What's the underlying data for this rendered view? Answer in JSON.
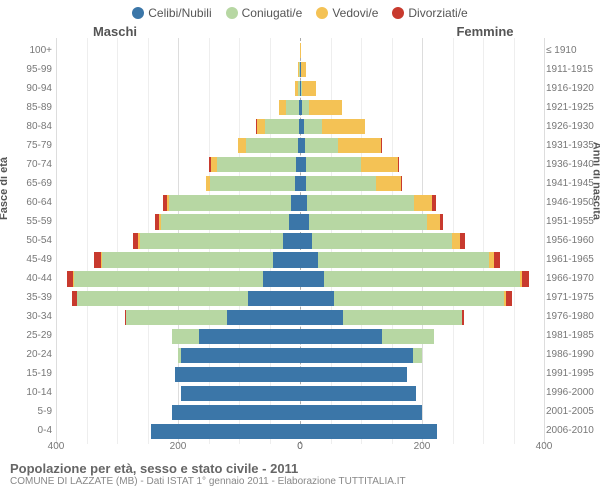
{
  "legend": [
    {
      "label": "Celibi/Nubili",
      "color": "#3b76a8"
    },
    {
      "label": "Coniugati/e",
      "color": "#b7d7a3"
    },
    {
      "label": "Vedovi/e",
      "color": "#f4c255"
    },
    {
      "label": "Divorziati/e",
      "color": "#c83a2e"
    }
  ],
  "header_male": "Maschi",
  "header_female": "Femmine",
  "axis_left": "Fasce di età",
  "axis_right": "Anni di nascita",
  "max_value": 400,
  "x_ticks_left": [
    400,
    200,
    0
  ],
  "x_ticks_right": [
    0,
    200,
    400
  ],
  "grid_minor_step": 50,
  "grid_minor_color": "#eeeeee",
  "grid_major_color": "#dddddd",
  "grid_major_ticks": [
    400,
    200,
    0
  ],
  "title": "Popolazione per età, sesso e stato civile - 2011",
  "subtitle": "COMUNE DI LAZZATE (MB) - Dati ISTAT 1° gennaio 2011 - Elaborazione TUTTITALIA.IT",
  "bar_series_order": [
    "celibi",
    "coniugati",
    "vedovi",
    "divorziati"
  ],
  "rows": [
    {
      "age": "0-4",
      "birth": "2006-2010",
      "m": {
        "celibi": 245,
        "coniugati": 0,
        "vedovi": 0,
        "divorziati": 0
      },
      "f": {
        "celibi": 225,
        "coniugati": 0,
        "vedovi": 0,
        "divorziati": 0
      }
    },
    {
      "age": "5-9",
      "birth": "2001-2005",
      "m": {
        "celibi": 210,
        "coniugati": 0,
        "vedovi": 0,
        "divorziati": 0
      },
      "f": {
        "celibi": 200,
        "coniugati": 0,
        "vedovi": 0,
        "divorziati": 0
      }
    },
    {
      "age": "10-14",
      "birth": "1996-2000",
      "m": {
        "celibi": 195,
        "coniugati": 0,
        "vedovi": 0,
        "divorziati": 0
      },
      "f": {
        "celibi": 190,
        "coniugati": 0,
        "vedovi": 0,
        "divorziati": 0
      }
    },
    {
      "age": "15-19",
      "birth": "1991-1995",
      "m": {
        "celibi": 205,
        "coniugati": 0,
        "vedovi": 0,
        "divorziati": 0
      },
      "f": {
        "celibi": 175,
        "coniugati": 0,
        "vedovi": 0,
        "divorziati": 0
      }
    },
    {
      "age": "20-24",
      "birth": "1986-1990",
      "m": {
        "celibi": 195,
        "coniugati": 5,
        "vedovi": 0,
        "divorziati": 0
      },
      "f": {
        "celibi": 185,
        "coniugati": 15,
        "vedovi": 0,
        "divorziati": 0
      }
    },
    {
      "age": "25-29",
      "birth": "1981-1985",
      "m": {
        "celibi": 165,
        "coniugati": 45,
        "vedovi": 0,
        "divorziati": 0
      },
      "f": {
        "celibi": 135,
        "coniugati": 85,
        "vedovi": 0,
        "divorziati": 0
      }
    },
    {
      "age": "30-34",
      "birth": "1976-1980",
      "m": {
        "celibi": 120,
        "coniugati": 165,
        "vedovi": 0,
        "divorziati": 2
      },
      "f": {
        "celibi": 70,
        "coniugati": 195,
        "vedovi": 0,
        "divorziati": 4
      }
    },
    {
      "age": "35-39",
      "birth": "1971-1975",
      "m": {
        "celibi": 85,
        "coniugati": 280,
        "vedovi": 0,
        "divorziati": 8
      },
      "f": {
        "celibi": 55,
        "coniugati": 280,
        "vedovi": 2,
        "divorziati": 10
      }
    },
    {
      "age": "40-44",
      "birth": "1966-1970",
      "m": {
        "celibi": 60,
        "coniugati": 310,
        "vedovi": 2,
        "divorziati": 10
      },
      "f": {
        "celibi": 40,
        "coniugati": 320,
        "vedovi": 4,
        "divorziati": 12
      }
    },
    {
      "age": "45-49",
      "birth": "1961-1965",
      "m": {
        "celibi": 45,
        "coniugati": 280,
        "vedovi": 2,
        "divorziati": 10
      },
      "f": {
        "celibi": 30,
        "coniugati": 280,
        "vedovi": 8,
        "divorziati": 10
      }
    },
    {
      "age": "50-54",
      "birth": "1956-1960",
      "m": {
        "celibi": 28,
        "coniugati": 235,
        "vedovi": 2,
        "divorziati": 8
      },
      "f": {
        "celibi": 20,
        "coniugati": 230,
        "vedovi": 12,
        "divorziati": 8
      }
    },
    {
      "age": "55-59",
      "birth": "1951-1955",
      "m": {
        "celibi": 18,
        "coniugati": 210,
        "vedovi": 3,
        "divorziati": 6
      },
      "f": {
        "celibi": 14,
        "coniugati": 195,
        "vedovi": 20,
        "divorziati": 6
      }
    },
    {
      "age": "60-64",
      "birth": "1946-1950",
      "m": {
        "celibi": 14,
        "coniugati": 200,
        "vedovi": 4,
        "divorziati": 6
      },
      "f": {
        "celibi": 12,
        "coniugati": 175,
        "vedovi": 30,
        "divorziati": 6
      }
    },
    {
      "age": "65-69",
      "birth": "1941-1945",
      "m": {
        "celibi": 8,
        "coniugati": 140,
        "vedovi": 6,
        "divorziati": 0
      },
      "f": {
        "celibi": 10,
        "coniugati": 115,
        "vedovi": 40,
        "divorziati": 3
      }
    },
    {
      "age": "70-74",
      "birth": "1936-1940",
      "m": {
        "celibi": 6,
        "coniugati": 130,
        "vedovi": 10,
        "divorziati": 3
      },
      "f": {
        "celibi": 10,
        "coniugati": 90,
        "vedovi": 60,
        "divorziati": 2
      }
    },
    {
      "age": "75-79",
      "birth": "1931-1935",
      "m": {
        "celibi": 4,
        "coniugati": 85,
        "vedovi": 12,
        "divorziati": 1
      },
      "f": {
        "celibi": 8,
        "coniugati": 55,
        "vedovi": 70,
        "divorziati": 1
      }
    },
    {
      "age": "80-84",
      "birth": "1926-1930",
      "m": {
        "celibi": 2,
        "coniugati": 55,
        "vedovi": 14,
        "divorziati": 1
      },
      "f": {
        "celibi": 6,
        "coniugati": 30,
        "vedovi": 70,
        "divorziati": 0
      }
    },
    {
      "age": "85-89",
      "birth": "1921-1925",
      "m": {
        "celibi": 1,
        "coniugati": 22,
        "vedovi": 12,
        "divorziati": 0
      },
      "f": {
        "celibi": 4,
        "coniugati": 10,
        "vedovi": 55,
        "divorziati": 0
      }
    },
    {
      "age": "90-94",
      "birth": "1916-1920",
      "m": {
        "celibi": 0,
        "coniugati": 4,
        "vedovi": 5,
        "divorziati": 0
      },
      "f": {
        "celibi": 2,
        "coniugati": 2,
        "vedovi": 22,
        "divorziati": 0
      }
    },
    {
      "age": "95-99",
      "birth": "1911-1915",
      "m": {
        "celibi": 0,
        "coniugati": 1,
        "vedovi": 2,
        "divorziati": 0
      },
      "f": {
        "celibi": 1,
        "coniugati": 0,
        "vedovi": 9,
        "divorziati": 0
      }
    },
    {
      "age": "100+",
      "birth": "≤ 1910",
      "m": {
        "celibi": 0,
        "coniugati": 0,
        "vedovi": 0,
        "divorziati": 0
      },
      "f": {
        "celibi": 0,
        "coniugati": 0,
        "vedovi": 2,
        "divorziati": 0
      }
    }
  ]
}
